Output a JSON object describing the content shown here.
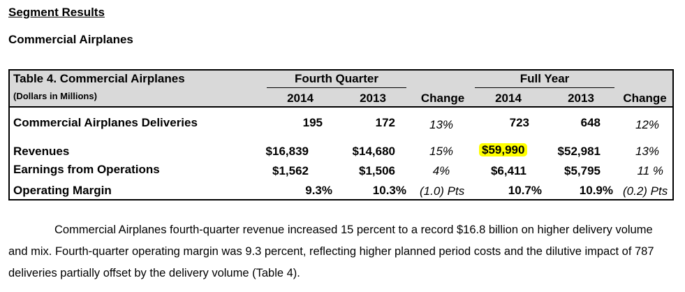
{
  "headings": {
    "segment": "Segment Results",
    "sub": "Commercial Airplanes"
  },
  "table": {
    "title": "Table 4. Commercial Airplanes",
    "subtitle": "(Dollars in Millions)",
    "group_quarter": "Fourth Quarter",
    "group_year": "Full Year",
    "col_q2014": "2014",
    "col_q2013": "2013",
    "col_qchange": "Change",
    "col_y2014": "2014",
    "col_y2013": "2013",
    "col_ychange": "Change",
    "rows": [
      {
        "label": "Commercial Airplanes Deliveries",
        "q2014": "195",
        "q2013": "172",
        "qchg": "13%",
        "y2014": "723",
        "y2013": "648",
        "ychg": "12%"
      },
      {
        "label": "Revenues",
        "q2014": "$16,839",
        "q2013": "$14,680",
        "qchg": "15%",
        "y2014": "$59,990",
        "y2013": "$52,981",
        "ychg": "13%"
      },
      {
        "label": "Earnings from Operations",
        "q2014": "$1,562",
        "q2013": "$1,506",
        "qchg": "4%",
        "y2014": "$6,411",
        "y2013": "$5,795",
        "ychg": "11 %"
      },
      {
        "label": "Operating Margin",
        "q2014": "9.3%",
        "q2013": "10.3%",
        "qchg": "(1.0) Pts",
        "y2014": "10.7%",
        "y2013": "10.9%",
        "ychg": "(0.2) Pts"
      }
    ],
    "highlight_color": "#ffff00",
    "header_band_color": "#d9d9d9"
  },
  "paragraph": "Commercial Airplanes fourth-quarter revenue increased 15 percent to a record $16.8 billion on higher delivery volume and mix. Fourth-quarter operating margin was 9.3 percent, reflecting higher planned period costs and the dilutive impact of 787 deliveries partially offset by the delivery volume (Table 4)."
}
